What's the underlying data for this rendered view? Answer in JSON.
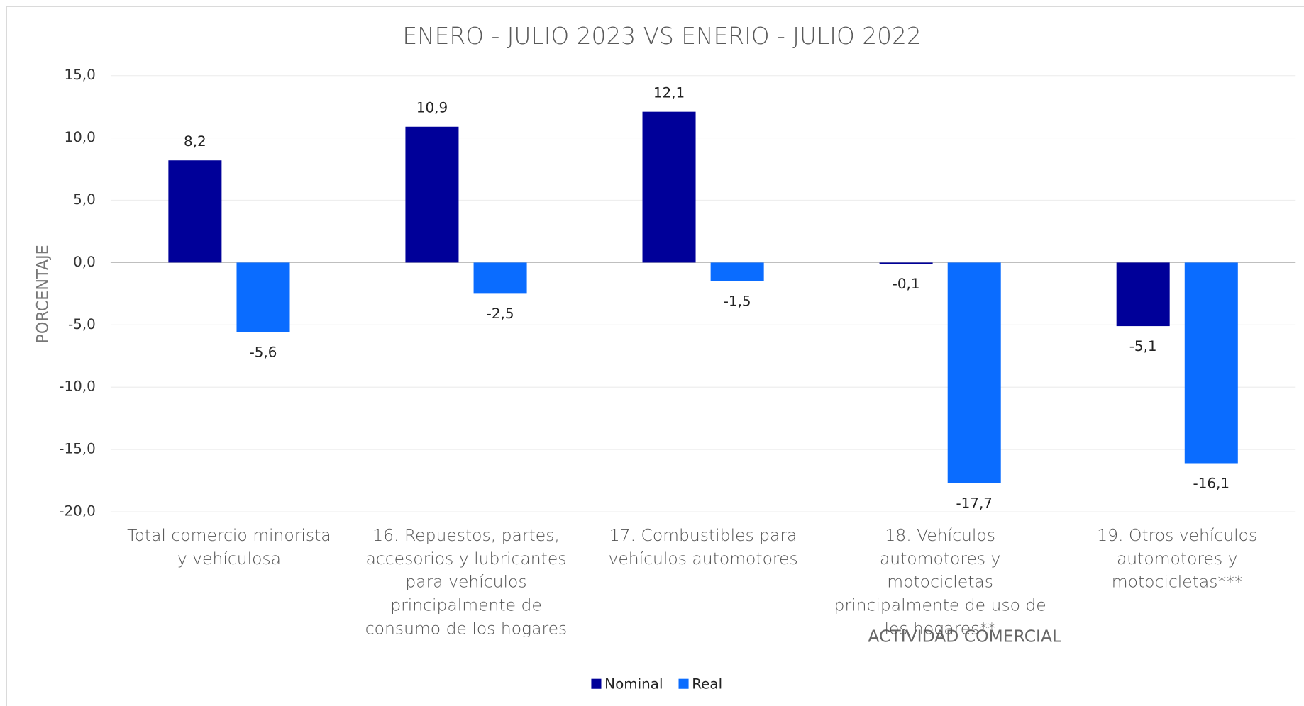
{
  "chart_data": {
    "type": "bar",
    "title": "ENERO - JULIO 2023 VS ENERIO - JULIO 2022",
    "y_label": "PORCENTAJE",
    "x_label": "ACTIVIDAD COMERCIAL",
    "categories": [
      "Total comercio minorista y vehículosa",
      "16. Repuestos, partes, accesorios y lubricantes para vehículos principalmente de consumo de los hogares",
      "17. Combustibles para vehículos automotores",
      "18. Vehículos automotores y motocicletas principalmente de uso de los hogares**",
      "19. Otros vehículos automotores y motocicletas***"
    ],
    "series": [
      {
        "name": "Nominal",
        "color": "#000099",
        "values": [
          8.2,
          10.9,
          12.1,
          -0.1,
          -5.1
        ],
        "value_labels": [
          "8,2",
          "10,9",
          "12,1",
          "-0,1",
          "-5,1"
        ]
      },
      {
        "name": "Real",
        "color": "#0a6cff",
        "values": [
          -5.6,
          -2.5,
          -1.5,
          -17.7,
          -16.1
        ],
        "value_labels": [
          "-5,6",
          "-2,5",
          "-1,5",
          "-17,7",
          "-16,1"
        ]
      }
    ],
    "ylim": [
      -20,
      15
    ],
    "yticks": [
      {
        "value": -20,
        "label": "-20,0"
      },
      {
        "value": -15,
        "label": "-15,0"
      },
      {
        "value": -10,
        "label": "-10,0"
      },
      {
        "value": -5,
        "label": "-5,0"
      },
      {
        "value": 0,
        "label": "0,0"
      },
      {
        "value": 5,
        "label": "5,0"
      },
      {
        "value": 10,
        "label": "10,0"
      },
      {
        "value": 15,
        "label": "15,0"
      }
    ],
    "grid": true,
    "legend": "bottom"
  }
}
